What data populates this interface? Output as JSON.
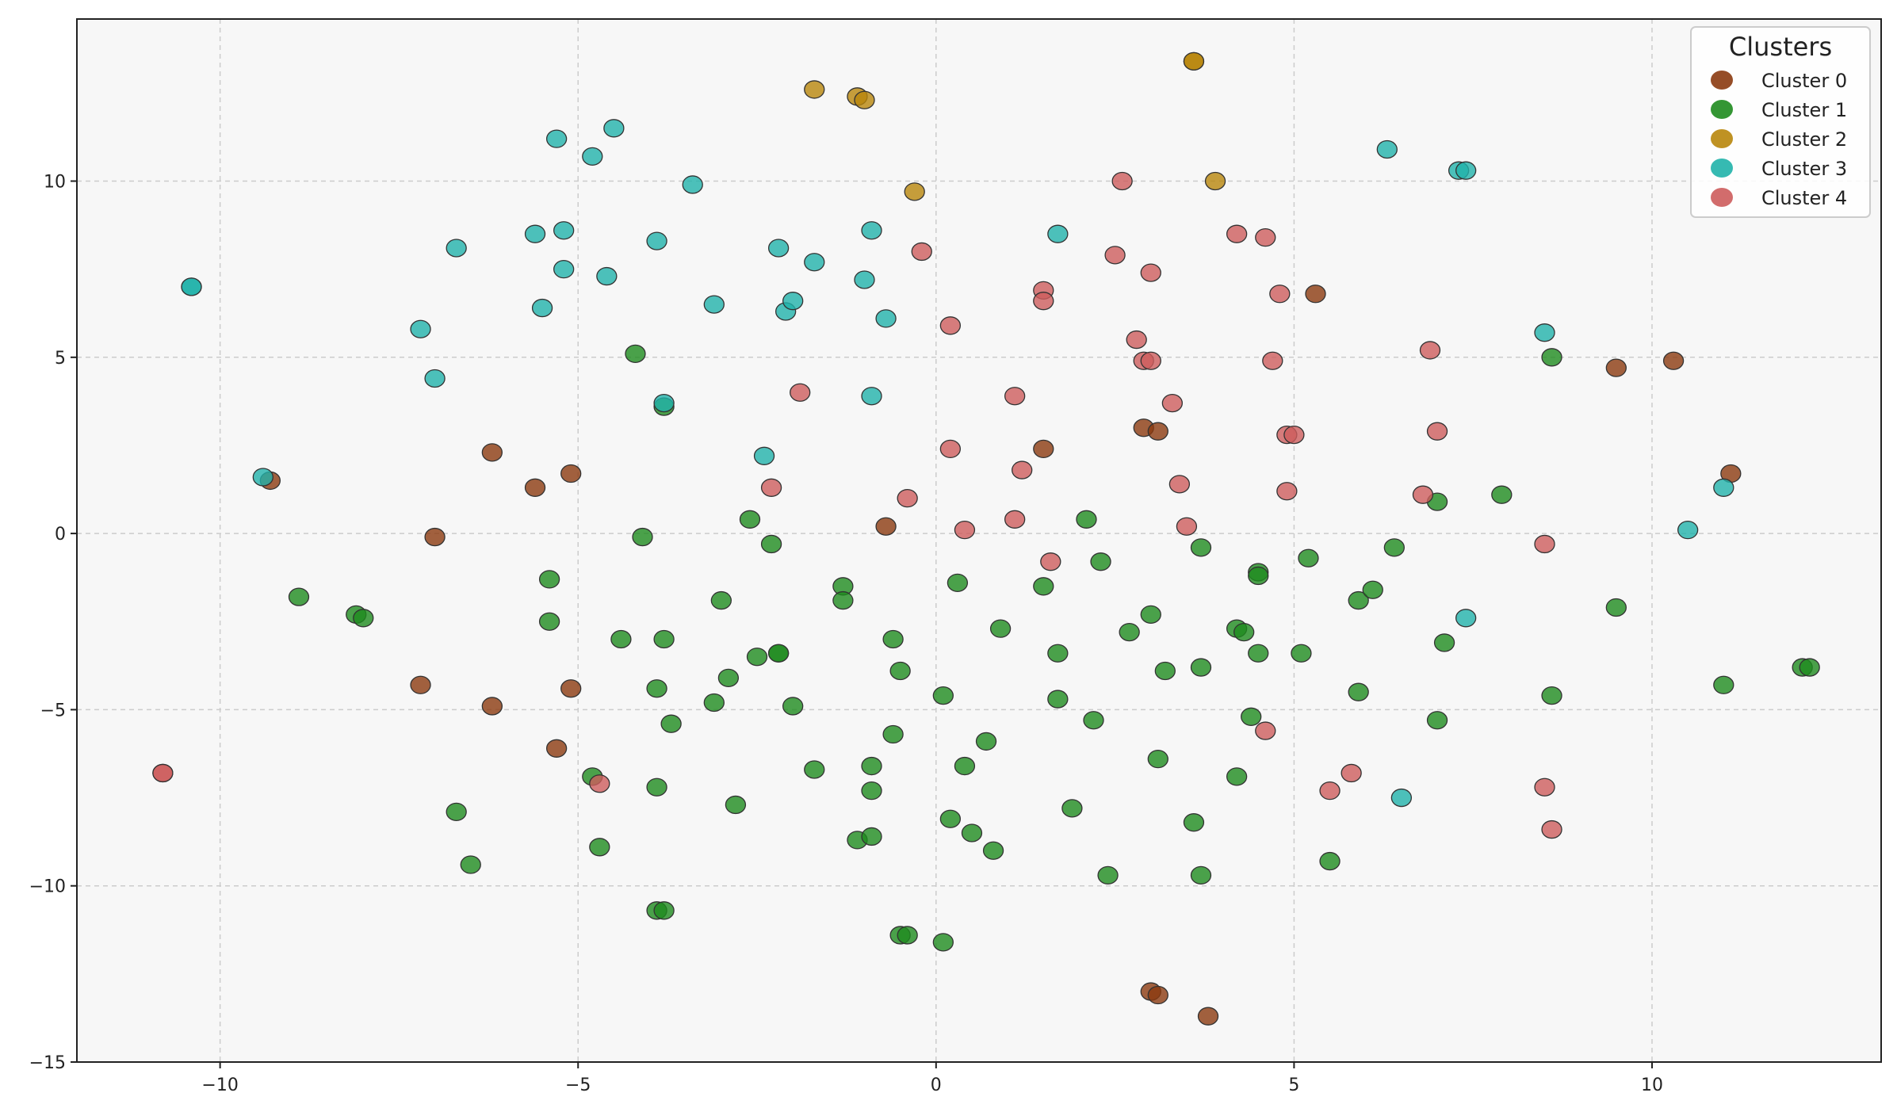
{
  "chart_data": {
    "type": "scatter",
    "title": "",
    "xlabel": "",
    "ylabel": "",
    "xlim": [
      -12,
      13.2
    ],
    "ylim": [
      -15,
      14.6
    ],
    "xticks": [
      -10,
      -5,
      0,
      5,
      10
    ],
    "yticks": [
      -15,
      -10,
      -5,
      0,
      5,
      10
    ],
    "xtick_labels": [
      "−10",
      "−5",
      "0",
      "5",
      "10"
    ],
    "ytick_labels": [
      "−15",
      "−10",
      "−5",
      "0",
      "5",
      "10"
    ],
    "grid": true,
    "legend": {
      "title": "Clusters",
      "placement": "top-right"
    },
    "series": [
      {
        "name": "Cluster 0",
        "color": "#8B3A0F",
        "points": [
          [
            -9.3,
            1.5
          ],
          [
            -6.2,
            2.3
          ],
          [
            -5.6,
            1.3
          ],
          [
            -5.1,
            1.7
          ],
          [
            -7.0,
            -0.1
          ],
          [
            -7.2,
            -4.3
          ],
          [
            -6.2,
            -4.9
          ],
          [
            -5.1,
            -4.4
          ],
          [
            -5.3,
            -6.1
          ],
          [
            -0.7,
            0.2
          ],
          [
            1.5,
            2.4
          ],
          [
            2.9,
            3.0
          ],
          [
            3.1,
            2.9
          ],
          [
            5.3,
            6.8
          ],
          [
            9.5,
            4.7
          ],
          [
            10.3,
            4.9
          ],
          [
            11.1,
            1.7
          ],
          [
            3.0,
            -13.0
          ],
          [
            3.1,
            -13.1
          ],
          [
            3.8,
            -13.7
          ]
        ]
      },
      {
        "name": "Cluster 1",
        "color": "#1E8B1E",
        "points": [
          [
            -4.2,
            5.1
          ],
          [
            -3.8,
            3.6
          ],
          [
            -4.1,
            -0.1
          ],
          [
            -2.6,
            0.4
          ],
          [
            -2.3,
            -0.3
          ],
          [
            -8.9,
            -1.8
          ],
          [
            -8.1,
            -2.3
          ],
          [
            -8.0,
            -2.4
          ],
          [
            -5.4,
            -1.3
          ],
          [
            -5.4,
            -2.5
          ],
          [
            -4.4,
            -3.0
          ],
          [
            -3.8,
            -3.0
          ],
          [
            -3.0,
            -1.9
          ],
          [
            -1.3,
            -1.5
          ],
          [
            -1.3,
            -1.9
          ],
          [
            -2.5,
            -3.5
          ],
          [
            -2.2,
            -3.4
          ],
          [
            -2.2,
            -3.4
          ],
          [
            -2.9,
            -4.1
          ],
          [
            -3.1,
            -4.8
          ],
          [
            -3.9,
            -4.4
          ],
          [
            -3.7,
            -5.4
          ],
          [
            -2.0,
            -4.9
          ],
          [
            -0.6,
            -3.0
          ],
          [
            -0.5,
            -3.9
          ],
          [
            0.3,
            -1.4
          ],
          [
            0.9,
            -2.7
          ],
          [
            1.5,
            -1.5
          ],
          [
            2.1,
            0.4
          ],
          [
            2.3,
            -0.8
          ],
          [
            3.7,
            -0.4
          ],
          [
            2.7,
            -2.8
          ],
          [
            3.0,
            -2.3
          ],
          [
            3.2,
            -3.9
          ],
          [
            3.7,
            -3.8
          ],
          [
            1.7,
            -3.4
          ],
          [
            1.7,
            -4.7
          ],
          [
            0.1,
            -4.6
          ],
          [
            -0.6,
            -5.7
          ],
          [
            0.7,
            -5.9
          ],
          [
            0.4,
            -6.6
          ],
          [
            -1.7,
            -6.7
          ],
          [
            -0.9,
            -6.6
          ],
          [
            -0.9,
            -7.3
          ],
          [
            -4.8,
            -6.9
          ],
          [
            -3.9,
            -7.2
          ],
          [
            -2.8,
            -7.7
          ],
          [
            -6.7,
            -7.9
          ],
          [
            -6.5,
            -9.4
          ],
          [
            -4.7,
            -8.9
          ],
          [
            -3.9,
            -10.7
          ],
          [
            -3.8,
            -10.7
          ],
          [
            -1.1,
            -8.7
          ],
          [
            -0.9,
            -8.6
          ],
          [
            0.2,
            -8.1
          ],
          [
            0.5,
            -8.5
          ],
          [
            0.8,
            -9.0
          ],
          [
            1.9,
            -7.8
          ],
          [
            2.2,
            -5.3
          ],
          [
            3.1,
            -6.4
          ],
          [
            3.6,
            -8.2
          ],
          [
            3.7,
            -9.7
          ],
          [
            2.4,
            -9.7
          ],
          [
            -0.5,
            -11.4
          ],
          [
            -0.4,
            -11.4
          ],
          [
            0.1,
            -11.6
          ],
          [
            4.2,
            -2.7
          ],
          [
            4.3,
            -2.8
          ],
          [
            4.5,
            -3.4
          ],
          [
            4.5,
            -1.1
          ],
          [
            4.5,
            -1.2
          ],
          [
            5.2,
            -0.7
          ],
          [
            5.1,
            -3.4
          ],
          [
            4.4,
            -5.2
          ],
          [
            4.2,
            -6.9
          ],
          [
            5.5,
            -9.3
          ],
          [
            5.9,
            -1.9
          ],
          [
            6.1,
            -1.6
          ],
          [
            6.4,
            -0.4
          ],
          [
            5.9,
            -4.5
          ],
          [
            7.0,
            0.9
          ],
          [
            7.9,
            1.1
          ],
          [
            7.1,
            -3.1
          ],
          [
            7.0,
            -5.3
          ],
          [
            8.6,
            5.0
          ],
          [
            8.6,
            -4.6
          ],
          [
            9.5,
            -2.1
          ],
          [
            11.0,
            -4.3
          ],
          [
            12.1,
            -3.8
          ],
          [
            12.2,
            -3.8
          ]
        ]
      },
      {
        "name": "Cluster 2",
        "color": "#B8860B",
        "points": [
          [
            -1.7,
            12.6
          ],
          [
            -1.1,
            12.4
          ],
          [
            -1.0,
            12.3
          ],
          [
            -0.3,
            9.7
          ],
          [
            3.6,
            13.4
          ],
          [
            3.6,
            13.4
          ],
          [
            3.9,
            10.0
          ]
        ]
      },
      {
        "name": "Cluster 3",
        "color": "#20B2AA",
        "points": [
          [
            -10.4,
            7.0
          ],
          [
            -10.4,
            7.0
          ],
          [
            -9.4,
            1.6
          ],
          [
            -7.2,
            5.8
          ],
          [
            -7.0,
            4.4
          ],
          [
            -6.7,
            8.1
          ],
          [
            -5.6,
            8.5
          ],
          [
            -5.5,
            6.4
          ],
          [
            -5.3,
            11.2
          ],
          [
            -5.2,
            8.6
          ],
          [
            -5.2,
            7.5
          ],
          [
            -4.8,
            10.7
          ],
          [
            -4.6,
            7.3
          ],
          [
            -4.5,
            11.5
          ],
          [
            -3.9,
            8.3
          ],
          [
            -3.8,
            3.7
          ],
          [
            -3.4,
            9.9
          ],
          [
            -3.1,
            6.5
          ],
          [
            -2.4,
            2.2
          ],
          [
            -2.2,
            8.1
          ],
          [
            -2.1,
            6.3
          ],
          [
            -2.0,
            6.6
          ],
          [
            -1.7,
            7.7
          ],
          [
            -1.0,
            7.2
          ],
          [
            -0.9,
            8.6
          ],
          [
            -0.9,
            3.9
          ],
          [
            -0.7,
            6.1
          ],
          [
            1.7,
            8.5
          ],
          [
            6.3,
            10.9
          ],
          [
            7.3,
            10.3
          ],
          [
            7.4,
            10.3
          ],
          [
            7.4,
            -2.4
          ],
          [
            6.5,
            -7.5
          ],
          [
            8.5,
            5.7
          ],
          [
            10.5,
            0.1
          ],
          [
            11.0,
            1.3
          ]
        ]
      },
      {
        "name": "Cluster 4",
        "color": "#CD5C5C",
        "points": [
          [
            -10.8,
            -6.8
          ],
          [
            -10.8,
            -6.8
          ],
          [
            -4.7,
            -7.1
          ],
          [
            -1.9,
            4.0
          ],
          [
            -2.3,
            1.3
          ],
          [
            -0.4,
            1.0
          ],
          [
            -0.2,
            8.0
          ],
          [
            0.2,
            5.9
          ],
          [
            0.2,
            2.4
          ],
          [
            0.4,
            0.1
          ],
          [
            1.1,
            0.4
          ],
          [
            1.1,
            3.9
          ],
          [
            1.2,
            1.8
          ],
          [
            1.5,
            6.9
          ],
          [
            1.5,
            6.6
          ],
          [
            1.6,
            -0.8
          ],
          [
            2.5,
            7.9
          ],
          [
            2.6,
            10.0
          ],
          [
            2.8,
            5.5
          ],
          [
            2.9,
            4.9
          ],
          [
            3.0,
            4.9
          ],
          [
            3.0,
            7.4
          ],
          [
            3.3,
            3.7
          ],
          [
            3.4,
            1.4
          ],
          [
            3.5,
            0.2
          ],
          [
            4.2,
            8.5
          ],
          [
            4.6,
            8.4
          ],
          [
            4.7,
            4.9
          ],
          [
            4.8,
            6.8
          ],
          [
            4.9,
            2.8
          ],
          [
            5.0,
            2.8
          ],
          [
            4.9,
            1.2
          ],
          [
            4.6,
            -5.6
          ],
          [
            5.5,
            -7.3
          ],
          [
            5.8,
            -6.8
          ],
          [
            6.8,
            1.1
          ],
          [
            6.9,
            5.2
          ],
          [
            7.0,
            2.9
          ],
          [
            8.5,
            -0.3
          ],
          [
            8.5,
            -7.2
          ],
          [
            8.6,
            -8.4
          ]
        ]
      }
    ]
  }
}
